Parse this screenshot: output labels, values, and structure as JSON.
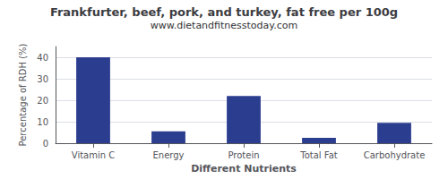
{
  "chart_data": {
    "type": "bar",
    "title": "Frankfurter, beef, pork, and turkey, fat free per 100g",
    "subtitle": "www.dietandfitnesstoday.com",
    "categories": [
      "Vitamin C",
      "Energy",
      "Protein",
      "Total Fat",
      "Carbohydrate"
    ],
    "values": [
      40,
      5.5,
      22,
      2.5,
      9.5
    ],
    "color": "#2b3d8f",
    "xlabel": "Different Nutrients",
    "ylabel": "Percentage of RDH (%)",
    "ylim": [
      0,
      45
    ],
    "yticks": [
      0,
      10,
      20,
      30,
      40
    ],
    "grid": true
  }
}
